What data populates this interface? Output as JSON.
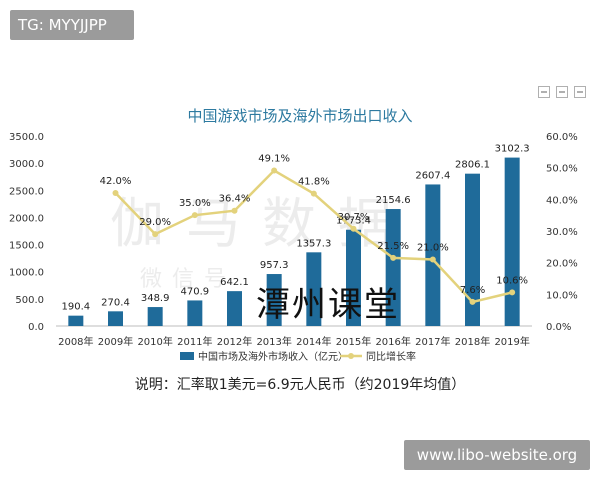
{
  "overlay": {
    "tag": "TG: MYYJJPP",
    "site": "www.libo-website.org",
    "stamp": "潭州课堂",
    "watermark": "伽马数据",
    "watermark_sub": "微信号"
  },
  "caption": "说明：汇率取1美元=6.9元人民币（约2019年均值）",
  "chart_data": {
    "type": "bar",
    "title": "中国游戏市场及海外市场出口收入",
    "categories": [
      "2008年",
      "2009年",
      "2010年",
      "2011年",
      "2012年",
      "2013年",
      "2014年",
      "2015年",
      "2016年",
      "2017年",
      "2018年",
      "2019年"
    ],
    "series": [
      {
        "name": "中国市场及海外市场收入（亿元）",
        "type": "bar",
        "axis": "left",
        "color": "#1f6b9a",
        "values": [
          190.4,
          270.4,
          348.9,
          470.9,
          642.1,
          957.3,
          1357.3,
          1773.4,
          2154.6,
          2607.4,
          2806.1,
          3102.3
        ],
        "labels": [
          "190.4",
          "270.4",
          "348.9",
          "470.9",
          "642.1",
          "957.3",
          "1357.3",
          "1773.4",
          "2154.6",
          "2607.4",
          "2806.1",
          "3102.3"
        ]
      },
      {
        "name": "同比增长率",
        "type": "line",
        "axis": "right",
        "color": "#e3d27c",
        "values": [
          null,
          42.0,
          29.0,
          35.0,
          36.4,
          49.1,
          41.8,
          30.7,
          21.5,
          21.0,
          7.6,
          10.6
        ],
        "labels": [
          "",
          "42.0%",
          "29.0%",
          "35.0%",
          "36.4%",
          "49.1%",
          "41.8%",
          "30.7%",
          "21.5%",
          "21.0%",
          "7.6%",
          "10.6%"
        ]
      }
    ],
    "y_left": {
      "min": 0,
      "max": 3500,
      "ticks": [
        "0.0",
        "500.0",
        "1000.0",
        "1500.0",
        "2000.0",
        "2500.0",
        "3000.0",
        "3500.0"
      ]
    },
    "y_right": {
      "min": 0,
      "max": 60,
      "ticks": [
        "0.0%",
        "10.0%",
        "20.0%",
        "30.0%",
        "40.0%",
        "50.0%",
        "60.0%"
      ]
    },
    "legend_position": "bottom",
    "grid": false
  }
}
